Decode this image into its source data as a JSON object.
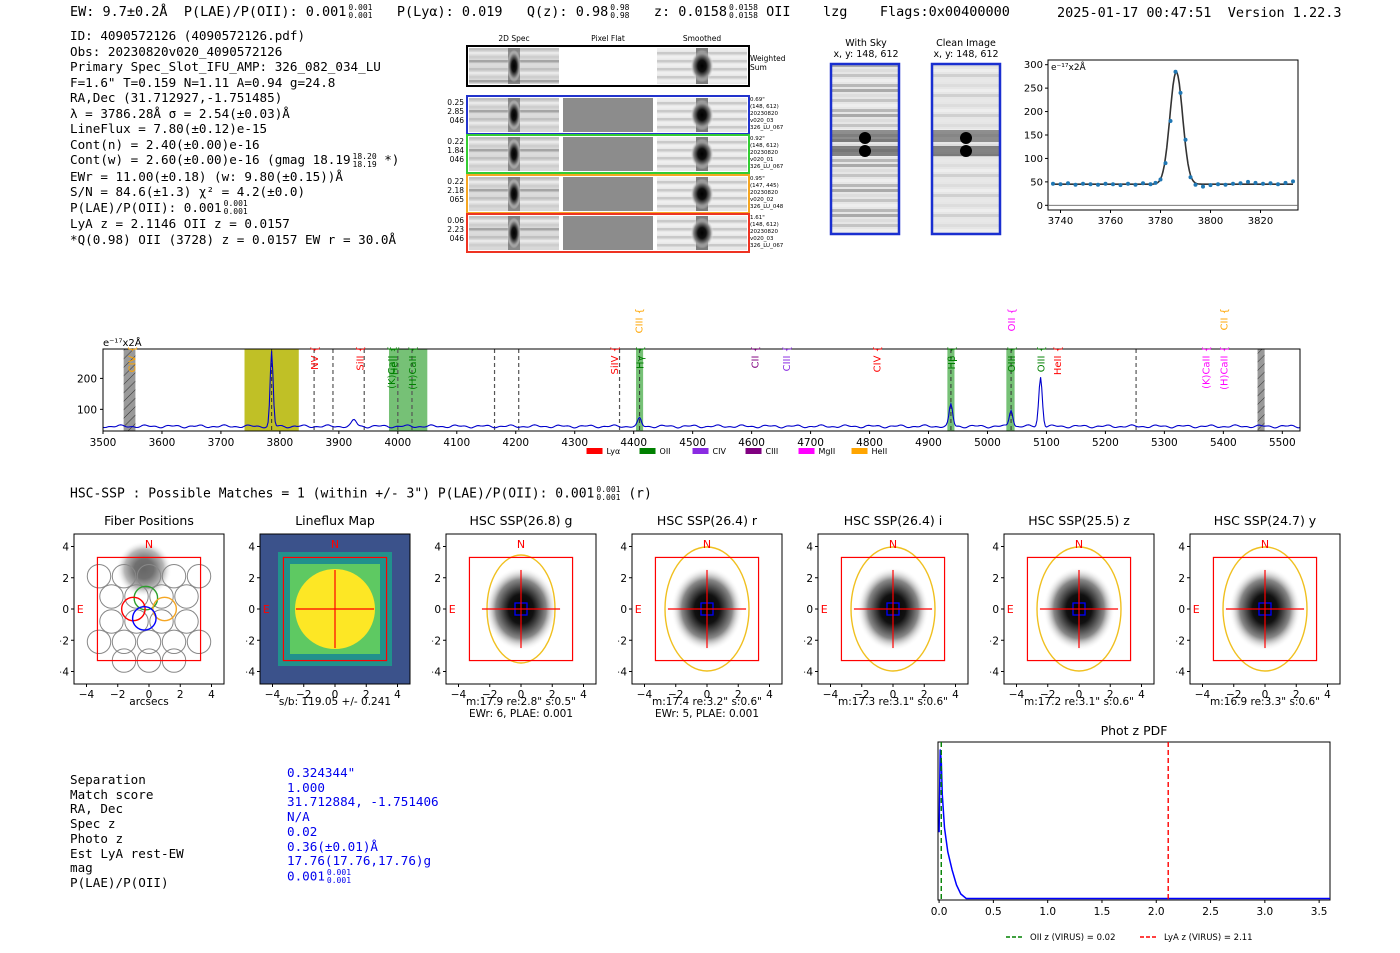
{
  "header": {
    "ew": "EW: 9.7±0.2Å",
    "plae_label": "P(LAE)/P(OII): 0.001",
    "plae_hi": "0.001",
    "plae_lo": "0.001",
    "plya": "P(Lyα): 0.019",
    "qz_label": "Q(z): 0.98",
    "qz_hi": "0.98",
    "qz_lo": "0.98",
    "z_label": "z: 0.0158",
    "z_hi": "0.0158",
    "z_lo": "0.0158",
    "z_line": "OII",
    "lzg": "lzg",
    "flags": "Flags:0x00400000",
    "timestamp": "2025-01-17 00:47:51",
    "version": "Version 1.22.3"
  },
  "info": {
    "id": "ID: 4090572126 (4090572126.pdf)",
    "obs": "Obs: 20230820v020_4090572126",
    "slot": "Primary Spec_Slot_IFU_AMP: 326_082_034_LU",
    "params": "F=1.6\"  T=0.159  N=1.11  A=0.94  g=24.8",
    "radec": "RA,Dec (31.712927,-1.751485)",
    "lambda": "λ = 3786.28Å  σ = 2.54(±0.03)Å",
    "lineflux": "LineFlux = 7.80(±0.12)e-15",
    "contn": "Cont(n) = 2.40(±0.00)e-16",
    "contw": "Cont(w) = 2.60(±0.00)e-16 (gmag 18.19",
    "contw_hi": "18.20",
    "contw_lo": "18.19",
    "contw_end": " *)",
    "ewr": "EWr = 11.00(±0.18) (w: 9.80(±0.15))Å",
    "sn": "S/N = 84.6(±1.3)  χ² = 4.2(±0.0)",
    "plae": "P(LAE)/P(OII): 0.001",
    "plae_hi": "0.001",
    "plae_lo": "0.001",
    "lya": "LyA z = 2.1146  OII z = 0.0157",
    "q": "*Q(0.98) OII (3728) z = 0.0157  EW r = 30.0Å"
  },
  "cutouts": {
    "col_2d": "2D Spec",
    "col_flat": "Pixel Flat",
    "col_smooth": "Smoothed",
    "weighted": "Weighted Sum",
    "rows": [
      {
        "left": [
          "0.25",
          "2.85",
          "046"
        ],
        "right": [
          "0.69\"",
          "(148, 612)",
          "20230820",
          "v020_03",
          "326_LU_067"
        ],
        "color": "#2233cc"
      },
      {
        "left": [
          "0.22",
          "1.84",
          "046"
        ],
        "right": [
          "0.92\"",
          "(148, 612)",
          "20230820",
          "v020_01",
          "326_LU_067"
        ],
        "color": "#33cc33"
      },
      {
        "left": [
          "0.22",
          "2.18",
          "065"
        ],
        "right": [
          "0.95\"",
          "(147, 445)",
          "20230820",
          "v020_02",
          "326_LU_048"
        ],
        "color": "#f5a623"
      },
      {
        "left": [
          "0.06",
          "2.23",
          "046"
        ],
        "right": [
          "1.61\"",
          "(148, 612)",
          "20230820",
          "v020_03",
          "326_LU_067"
        ],
        "color": "#ee3322"
      }
    ]
  },
  "sky": {
    "with_sky": "With Sky",
    "with_sky_xy": "x, y: 148, 612",
    "clean": "Clean Image",
    "clean_xy": "x, y: 148, 612"
  },
  "colors": {
    "lya": "#ff0000",
    "oii": "#008000",
    "civ": "#8a2be2",
    "ciii": "#800080",
    "mgii": "#ff00ff",
    "heii": "#ffa500",
    "spectrum": "#0000cc",
    "box_red": "#ff0000",
    "ellipse": "#f0c020"
  },
  "legend": [
    "Lyα",
    "OII",
    "CIV",
    "CIII",
    "MgII",
    "HeII"
  ],
  "line_labels": [
    {
      "text": "CIV",
      "wl": 3548,
      "color": "#ffa500",
      "row": 1
    },
    {
      "text": "NV",
      "wl": 3858,
      "color": "#ff0000",
      "row": 1
    },
    {
      "text": "SiII",
      "wl": 3935,
      "color": "#ff0000",
      "row": 1
    },
    {
      "text": "HeII",
      "wl": 3993,
      "color": "#008000",
      "row": 1
    },
    {
      "text": "(K)CaII",
      "wl": 3988,
      "color": "#008000",
      "row": 2
    },
    {
      "text": "(H)CaII",
      "wl": 4024,
      "color": "#008000",
      "row": 2
    },
    {
      "text": "SiIV",
      "wl": 4367,
      "color": "#ff0000",
      "row": 1
    },
    {
      "text": "CIII",
      "wl": 4408,
      "color": "#ffa500",
      "row": 3
    },
    {
      "text": "Hγ",
      "wl": 4410,
      "color": "#008000",
      "row": 1
    },
    {
      "text": "CII",
      "wl": 4605,
      "color": "#800080",
      "row": 1
    },
    {
      "text": "CIII",
      "wl": 4658,
      "color": "#8a2be2",
      "row": 1
    },
    {
      "text": "CIV",
      "wl": 4812,
      "color": "#ff0000",
      "row": 1
    },
    {
      "text": "Hβ",
      "wl": 4938,
      "color": "#008000",
      "row": 1
    },
    {
      "text": "OII",
      "wl": 5040,
      "color": "#ff00ff",
      "row": 3
    },
    {
      "text": "OIII",
      "wl": 5040,
      "color": "#008000",
      "row": 1
    },
    {
      "text": "OIII",
      "wl": 5090,
      "color": "#008000",
      "row": 1
    },
    {
      "text": "HeII",
      "wl": 5118,
      "color": "#ff0000",
      "row": 1
    },
    {
      "text": "(K)CaII",
      "wl": 5370,
      "color": "#ff00ff",
      "row": 2
    },
    {
      "text": "(H)CaII",
      "wl": 5400,
      "color": "#ff00ff",
      "row": 2
    },
    {
      "text": "CII",
      "wl": 5400,
      "color": "#ffa500",
      "row": 3
    }
  ],
  "hsc": {
    "title": "HSC-SSP : Possible Matches = 1 (within +/- 3\")  P(LAE)/P(OII): 0.001",
    "hi": "0.001",
    "lo": "0.001",
    "end": "(r)",
    "panels": [
      {
        "title": "Fiber Positions",
        "cap1": "arcsecs",
        "cap2": ""
      },
      {
        "title": "Lineflux Map",
        "cap1": "s/b: 119.05 +/- 0.241",
        "cap2": ""
      },
      {
        "title": "HSC SSP(26.8) g",
        "cap1": "m:17.9  re:2.8\"  s:0.5\"",
        "cap2": "EWr: 6, PLAE: 0.001"
      },
      {
        "title": "HSC SSP(26.4) r",
        "cap1": "m:17.4  re:3.2\"  s:0.6\"",
        "cap2": "EWr: 5, PLAE: 0.001"
      },
      {
        "title": "HSC SSP(26.4) i",
        "cap1": "m:17.3  re:3.1\"  s:0.6\"",
        "cap2": ""
      },
      {
        "title": "HSC SSP(25.5) z",
        "cap1": "m:17.2  re:3.1\"  s:0.6\"",
        "cap2": ""
      },
      {
        "title": "HSC SSP(24.7) y",
        "cap1": "m:16.9  re:3.3\"  s:0.6\"",
        "cap2": ""
      }
    ],
    "compass_n": "N",
    "compass_e": "E"
  },
  "match": {
    "labels": [
      "Separation",
      "Match score",
      "RA, Dec",
      "Spec z",
      "Photo z",
      "Est LyA rest-EW",
      "mag",
      "P(LAE)/P(OII)"
    ],
    "values": [
      "0.324344\"",
      "1.000",
      "31.712884, -1.751406",
      "N/A",
      "0.02",
      "0.36(±0.01)Å",
      "17.76(17.76,17.76)g",
      "0.001"
    ],
    "plae_hi": "0.001",
    "plae_lo": "0.001"
  },
  "chart_data": [
    {
      "type": "line",
      "title": "",
      "ylabel": "e⁻¹⁷x2Å",
      "xlim": [
        3735,
        3835
      ],
      "ylim": [
        -10,
        310
      ],
      "xticks": [
        3740,
        3760,
        3780,
        3800,
        3820
      ],
      "yticks": [
        0,
        50,
        100,
        150,
        200,
        250,
        300
      ],
      "points_x": [
        3737,
        3740,
        3743,
        3746,
        3749,
        3752,
        3755,
        3758,
        3761,
        3764,
        3767,
        3770,
        3773,
        3776,
        3778,
        3780,
        3782,
        3784,
        3786,
        3788,
        3790,
        3792,
        3794,
        3797,
        3800,
        3803,
        3806,
        3809,
        3812,
        3815,
        3818,
        3821,
        3824,
        3827,
        3830,
        3833
      ],
      "points_y": [
        46,
        45,
        47,
        44,
        46,
        45,
        44,
        46,
        45,
        43,
        46,
        44,
        47,
        45,
        48,
        55,
        90,
        180,
        285,
        240,
        140,
        60,
        44,
        40,
        43,
        45,
        44,
        46,
        47,
        50,
        48,
        46,
        47,
        45,
        48,
        51
      ]
    },
    {
      "type": "line",
      "title": "",
      "ylabel": "e⁻¹⁷x2Å",
      "xlim": [
        3500,
        5530
      ],
      "ylim": [
        30,
        295
      ],
      "xticks": [
        3500,
        3600,
        3700,
        3800,
        3900,
        4000,
        4100,
        4200,
        4300,
        4400,
        4500,
        4600,
        4700,
        4800,
        4900,
        5000,
        5100,
        5200,
        5300,
        5400,
        5500
      ],
      "yticks": [
        100,
        200
      ],
      "baseline": 45,
      "peaks": [
        {
          "wl": 3786,
          "amp": 240,
          "sigma": 2.5
        },
        {
          "wl": 3926,
          "amp": 20,
          "sigma": 4
        },
        {
          "wl": 4410,
          "amp": 25,
          "sigma": 3
        },
        {
          "wl": 4938,
          "amp": 70,
          "sigma": 3
        },
        {
          "wl": 5040,
          "amp": 55,
          "sigma": 3
        },
        {
          "wl": 5090,
          "amp": 160,
          "sigma": 3
        }
      ],
      "shaded_yellow": [
        [
          3740,
          3832
        ]
      ],
      "shaded_green": [
        [
          3985,
          4050
        ],
        [
          4404,
          4416
        ],
        [
          4932,
          4944
        ],
        [
          5032,
          5046
        ]
      ],
      "hatched_gray": [
        [
          3535,
          3555
        ],
        [
          5458,
          5470
        ]
      ],
      "dashed_lines": [
        3858,
        3890,
        3943,
        4000,
        4024,
        4164,
        4205,
        4376,
        5252
      ]
    },
    {
      "type": "line",
      "title": "Phot z PDF",
      "xlim": [
        -0.01,
        3.6
      ],
      "ylim": [
        0,
        1.05
      ],
      "xticks": [
        0.0,
        0.5,
        1.0,
        1.5,
        2.0,
        2.5,
        3.0,
        3.5
      ],
      "x": [
        0.0,
        0.01,
        0.02,
        0.03,
        0.05,
        0.08,
        0.12,
        0.16,
        0.2,
        0.25,
        0.5,
        1.0,
        2.0,
        3.0,
        3.6
      ],
      "y": [
        0.45,
        1.0,
        0.92,
        0.7,
        0.48,
        0.32,
        0.2,
        0.1,
        0.04,
        0.01,
        0.01,
        0.01,
        0.01,
        0.01,
        0.01
      ],
      "vlines": [
        {
          "x": 0.02,
          "label": "OII z (VIRUS) = 0.02",
          "color": "#008000"
        },
        {
          "x": 2.11,
          "label": "LyA z (VIRUS) = 2.11",
          "color": "#ff0000"
        }
      ]
    }
  ]
}
